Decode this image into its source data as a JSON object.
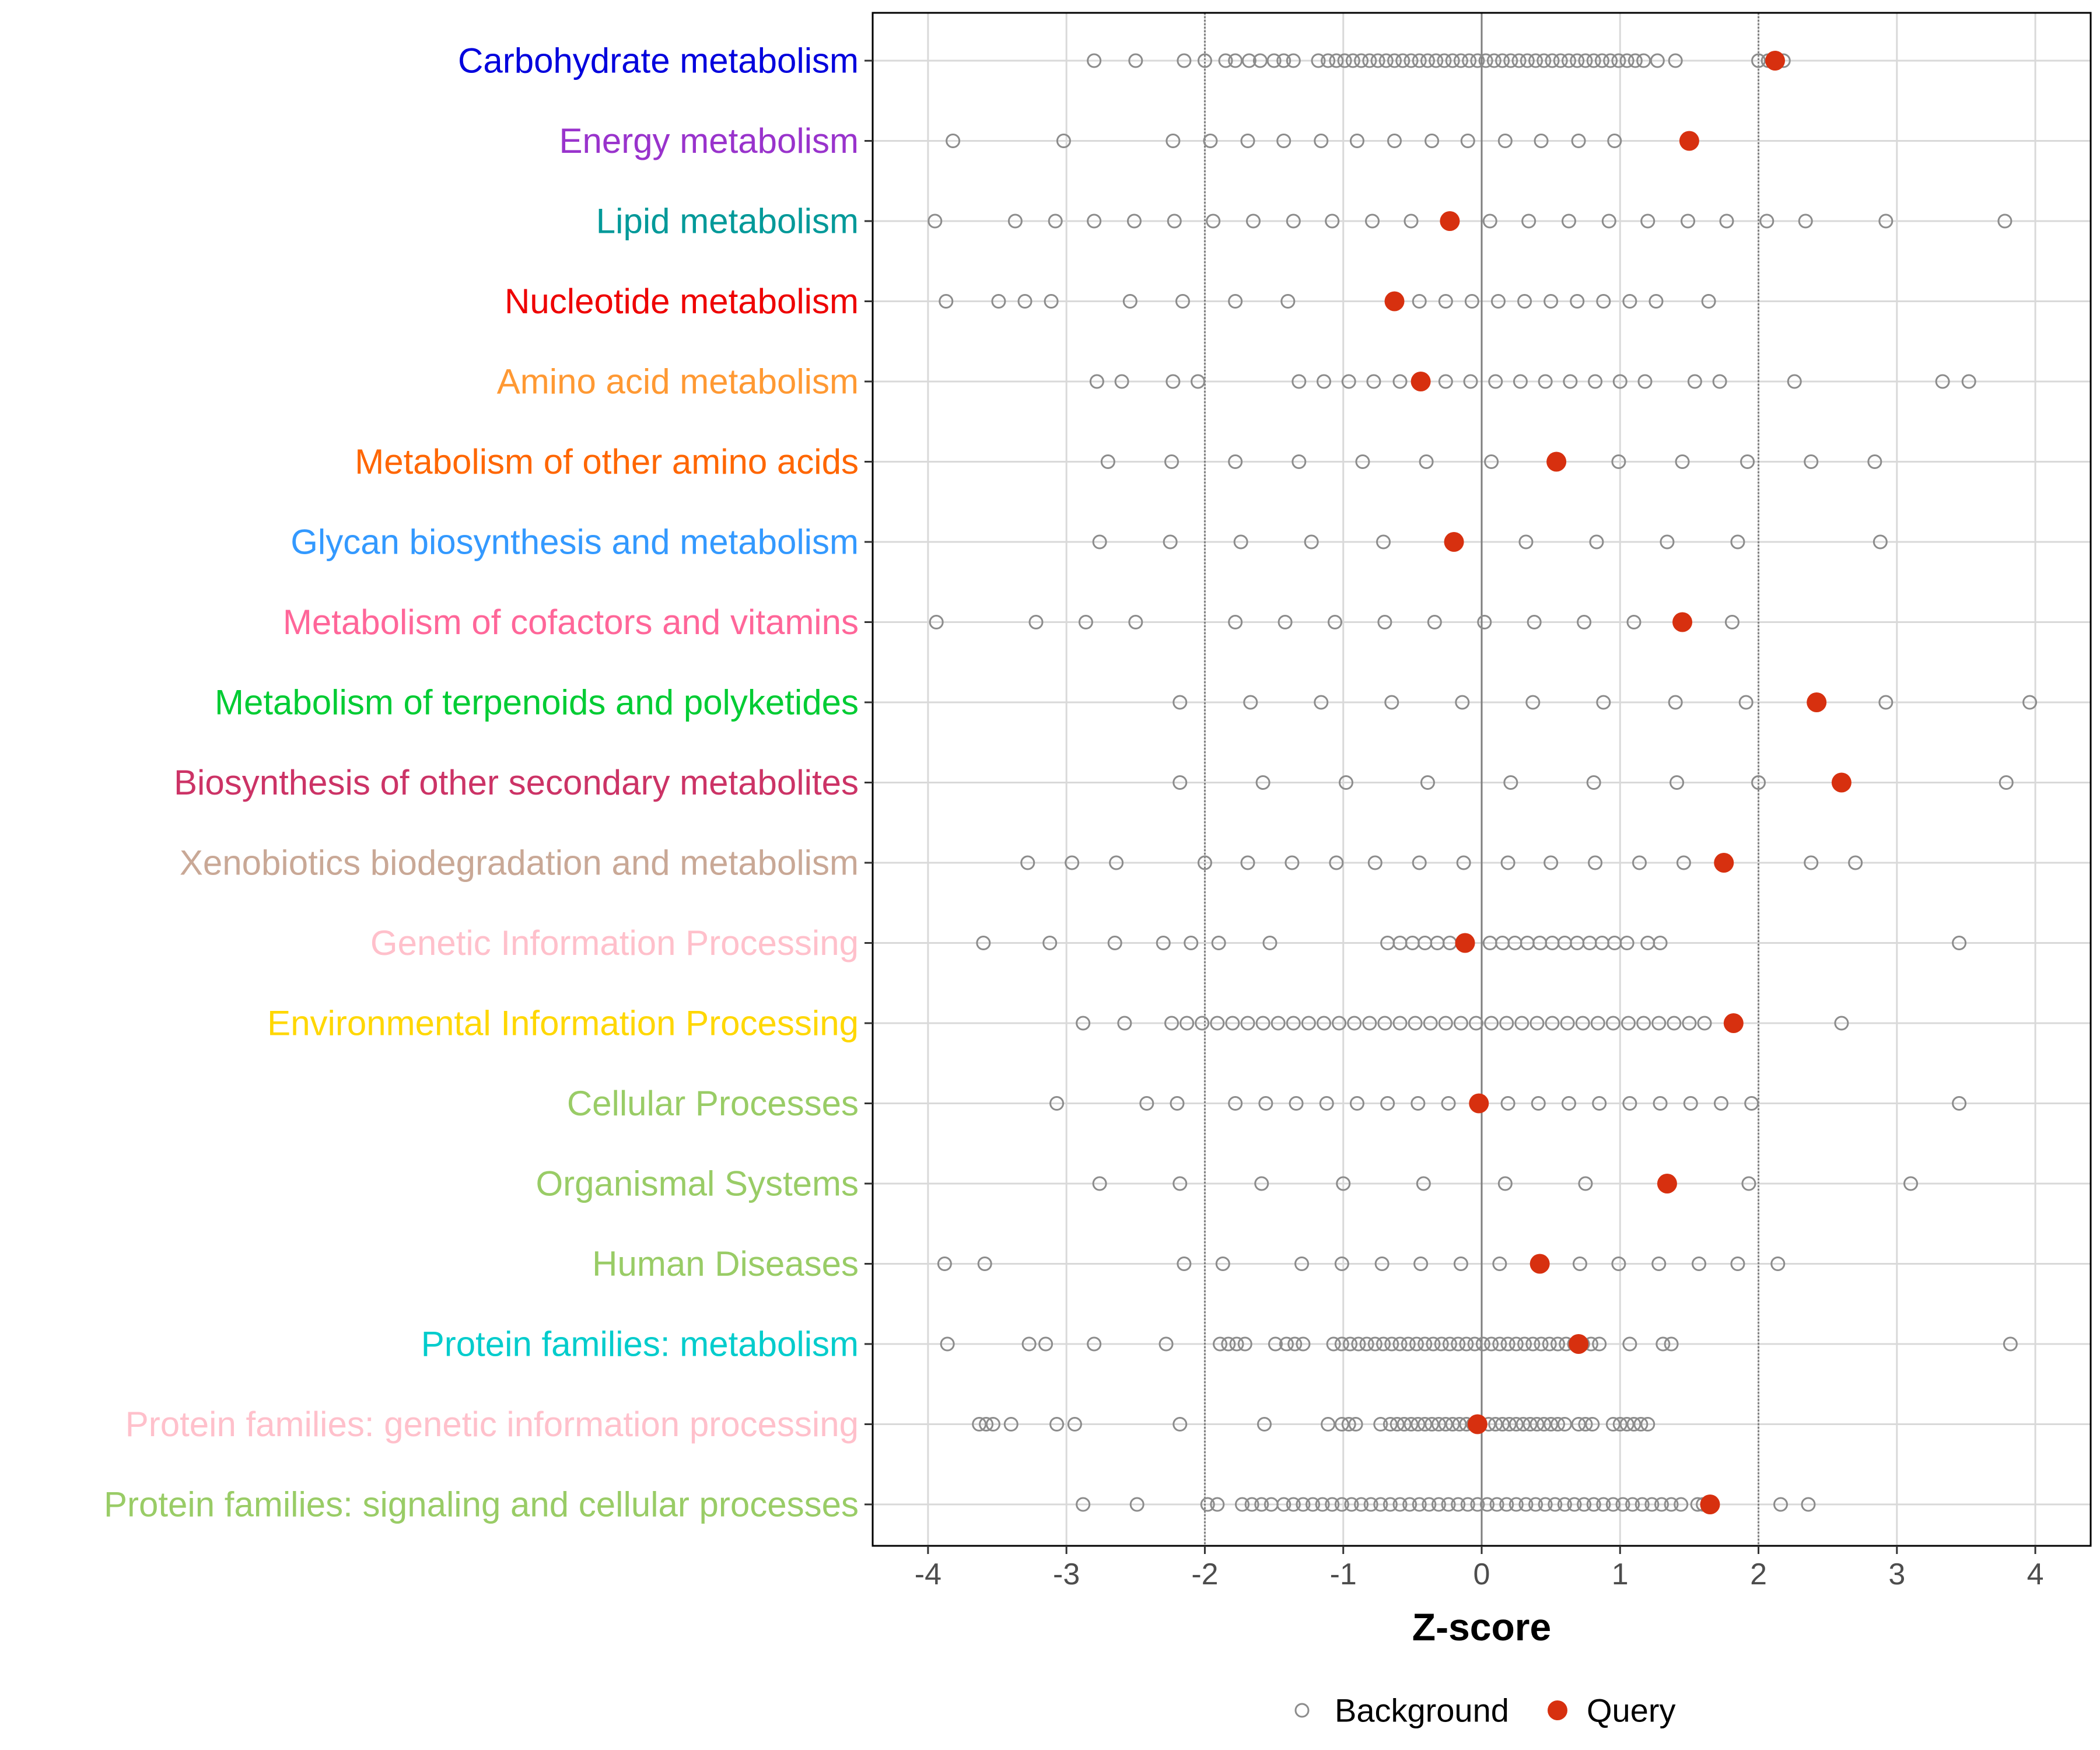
{
  "chart_data": {
    "type": "scatter",
    "xlabel": "Z-score",
    "xlim": [
      -4.4,
      4.4
    ],
    "xticks": [
      -4,
      -3,
      -2,
      -1,
      0,
      1,
      2,
      3,
      4
    ],
    "xtick_labels": [
      "-4",
      "-3",
      "-2",
      "-1",
      "0",
      "1",
      "2",
      "3",
      "4"
    ],
    "reference_lines": [
      {
        "x": -2,
        "style": "dotted"
      },
      {
        "x": 0,
        "style": "solid"
      },
      {
        "x": 2,
        "style": "dotted"
      }
    ],
    "grid": true,
    "legend": {
      "placement": "bottom",
      "items": [
        {
          "label": "Background",
          "marker": "open-circle",
          "color": "#8c8c8c"
        },
        {
          "label": "Query",
          "marker": "filled-circle",
          "color": "#d7300f"
        }
      ]
    },
    "categories": [
      {
        "label": "Carbohydrate metabolism",
        "color": "#0000dd",
        "query": 2.12,
        "background": [
          -2.8,
          -2.5,
          -2.15,
          -2.0,
          -1.85,
          -1.78,
          -1.68,
          -1.6,
          -1.5,
          -1.43,
          -1.36,
          -1.18,
          -1.11,
          -1.05,
          -0.99,
          -0.93,
          -0.87,
          -0.81,
          -0.75,
          -0.69,
          -0.63,
          -0.57,
          -0.51,
          -0.45,
          -0.39,
          -0.33,
          -0.27,
          -0.21,
          -0.15,
          -0.09,
          -0.03,
          0.03,
          0.09,
          0.15,
          0.21,
          0.27,
          0.33,
          0.39,
          0.45,
          0.51,
          0.57,
          0.63,
          0.69,
          0.75,
          0.81,
          0.87,
          0.93,
          0.99,
          1.05,
          1.11,
          1.17,
          1.27,
          1.4,
          2.0,
          2.07,
          2.18
        ]
      },
      {
        "label": "Energy metabolism",
        "color": "#9933cc",
        "query": 1.5,
        "background": [
          -3.82,
          -3.02,
          -2.23,
          -1.96,
          -1.69,
          -1.43,
          -1.16,
          -0.9,
          -0.63,
          -0.36,
          -0.1,
          0.17,
          0.43,
          0.7,
          0.96
        ]
      },
      {
        "label": "Lipid metabolism",
        "color": "#009999",
        "query": -0.23,
        "background": [
          -3.95,
          -3.37,
          -3.08,
          -2.8,
          -2.51,
          -2.22,
          -1.94,
          -1.65,
          -1.36,
          -1.08,
          -0.79,
          -0.51,
          0.06,
          0.34,
          0.63,
          0.92,
          1.2,
          1.49,
          1.77,
          2.06,
          2.34,
          2.92,
          3.78
        ]
      },
      {
        "label": "Nucleotide metabolism",
        "color": "#ee0000",
        "query": -0.63,
        "background": [
          -3.87,
          -3.49,
          -3.3,
          -3.11,
          -2.54,
          -2.16,
          -1.78,
          -1.4,
          -0.45,
          -0.26,
          -0.07,
          0.12,
          0.31,
          0.5,
          0.69,
          0.88,
          1.07,
          1.26,
          1.64
        ]
      },
      {
        "label": "Amino acid metabolism",
        "color": "#ff9933",
        "query": -0.44,
        "background": [
          -2.78,
          -2.6,
          -2.23,
          -2.05,
          -1.32,
          -1.14,
          -0.96,
          -0.78,
          -0.59,
          -0.26,
          -0.08,
          0.1,
          0.28,
          0.46,
          0.64,
          0.82,
          1.0,
          1.18,
          1.54,
          1.72,
          2.26,
          3.33,
          3.52
        ]
      },
      {
        "label": "Metabolism of other amino acids",
        "color": "#ff6600",
        "query": 0.54,
        "background": [
          -2.7,
          -2.24,
          -1.78,
          -1.32,
          -0.86,
          -0.4,
          0.07,
          0.99,
          1.45,
          1.92,
          2.38,
          2.84
        ]
      },
      {
        "label": "Glycan biosynthesis and metabolism",
        "color": "#3399ff",
        "query": -0.2,
        "background": [
          -2.76,
          -2.25,
          -1.74,
          -1.23,
          -0.71,
          0.32,
          0.83,
          1.34,
          1.85,
          2.88
        ]
      },
      {
        "label": "Metabolism of cofactors and vitamins",
        "color": "#ff6699",
        "query": 1.45,
        "background": [
          -3.94,
          -3.22,
          -2.86,
          -2.5,
          -1.78,
          -1.42,
          -1.06,
          -0.7,
          -0.34,
          0.02,
          0.38,
          0.74,
          1.1,
          1.81
        ]
      },
      {
        "label": "Metabolism of terpenoids and polyketides",
        "color": "#00cc33",
        "query": 2.42,
        "background": [
          -2.18,
          -1.67,
          -1.16,
          -0.65,
          -0.14,
          0.37,
          0.88,
          1.4,
          1.91,
          2.92,
          3.96
        ]
      },
      {
        "label": "Biosynthesis of other secondary metabolites",
        "color": "#cc3366",
        "query": 2.6,
        "background": [
          -2.18,
          -1.58,
          -0.98,
          -0.39,
          0.21,
          0.81,
          1.41,
          2.0,
          3.79
        ]
      },
      {
        "label": "Xenobiotics biodegradation and metabolism",
        "color": "#c9a896",
        "query": 1.75,
        "background": [
          -3.28,
          -2.96,
          -2.64,
          -2.0,
          -1.69,
          -1.37,
          -1.05,
          -0.77,
          -0.45,
          -0.13,
          0.19,
          0.5,
          0.82,
          1.14,
          1.46,
          2.38,
          2.7
        ]
      },
      {
        "label": "Genetic Information Processing",
        "color": "#ffc0cb",
        "query": -0.12,
        "background": [
          -3.6,
          -3.12,
          -2.65,
          -2.3,
          -2.1,
          -1.9,
          -1.53,
          -0.68,
          -0.59,
          -0.5,
          -0.41,
          -0.32,
          -0.23,
          0.06,
          0.15,
          0.24,
          0.33,
          0.42,
          0.51,
          0.6,
          0.69,
          0.78,
          0.87,
          0.96,
          1.05,
          1.2,
          1.29,
          3.45
        ]
      },
      {
        "label": "Environmental Information Processing",
        "color": "#ffd700",
        "query": 1.82,
        "background": [
          -2.88,
          -2.58,
          -2.24,
          -2.13,
          -2.02,
          -1.91,
          -1.8,
          -1.69,
          -1.58,
          -1.47,
          -1.36,
          -1.25,
          -1.14,
          -1.03,
          -0.92,
          -0.81,
          -0.7,
          -0.59,
          -0.48,
          -0.37,
          -0.26,
          -0.15,
          -0.04,
          0.07,
          0.18,
          0.29,
          0.4,
          0.51,
          0.62,
          0.73,
          0.84,
          0.95,
          1.06,
          1.17,
          1.28,
          1.39,
          1.5,
          1.61,
          2.6
        ]
      },
      {
        "label": "Cellular Processes",
        "color": "#99cc66",
        "query": -0.02,
        "background": [
          -3.07,
          -2.42,
          -2.2,
          -1.78,
          -1.56,
          -1.34,
          -1.12,
          -0.9,
          -0.68,
          -0.46,
          -0.24,
          0.19,
          0.41,
          0.63,
          0.85,
          1.07,
          1.29,
          1.51,
          1.73,
          1.95,
          3.45
        ]
      },
      {
        "label": "Organismal Systems",
        "color": "#99cc66",
        "query": 1.34,
        "background": [
          -2.76,
          -2.18,
          -1.59,
          -1.0,
          -0.42,
          0.17,
          0.75,
          1.93,
          3.1
        ]
      },
      {
        "label": "Human Diseases",
        "color": "#99cc66",
        "query": 0.42,
        "background": [
          -3.88,
          -3.59,
          -2.15,
          -1.87,
          -1.3,
          -1.01,
          -0.72,
          -0.44,
          -0.15,
          0.13,
          0.71,
          0.99,
          1.28,
          1.57,
          1.85,
          2.14
        ]
      },
      {
        "label": "Protein families: metabolism",
        "color": "#00cccc",
        "query": 0.7,
        "background": [
          -3.86,
          -3.27,
          -3.15,
          -2.8,
          -2.28,
          -1.89,
          -1.83,
          -1.77,
          -1.71,
          -1.49,
          -1.41,
          -1.35,
          -1.29,
          -1.07,
          -1.01,
          -0.95,
          -0.89,
          -0.83,
          -0.77,
          -0.71,
          -0.65,
          -0.59,
          -0.53,
          -0.47,
          -0.41,
          -0.35,
          -0.29,
          -0.23,
          -0.17,
          -0.11,
          -0.05,
          0.01,
          0.07,
          0.13,
          0.19,
          0.25,
          0.31,
          0.37,
          0.43,
          0.49,
          0.55,
          0.61,
          0.67,
          0.73,
          0.79,
          0.85,
          1.07,
          1.31,
          1.37,
          3.82
        ]
      },
      {
        "label": "Protein families: genetic information processing",
        "color": "#ffc0cb",
        "query": -0.03,
        "background": [
          -3.63,
          -3.58,
          -3.53,
          -3.4,
          -3.07,
          -2.94,
          -2.18,
          -1.57,
          -1.11,
          -1.01,
          -0.96,
          -0.91,
          -0.73,
          -0.66,
          -0.61,
          -0.56,
          -0.51,
          -0.46,
          -0.41,
          -0.36,
          -0.31,
          -0.26,
          -0.21,
          -0.16,
          -0.11,
          -0.06,
          0.05,
          0.1,
          0.15,
          0.2,
          0.25,
          0.3,
          0.35,
          0.4,
          0.45,
          0.5,
          0.55,
          0.6,
          0.7,
          0.75,
          0.8,
          0.95,
          1.0,
          1.05,
          1.1,
          1.15,
          1.2
        ]
      },
      {
        "label": "Protein families: signaling and cellular processes",
        "color": "#99cc66",
        "query": 1.65,
        "background": [
          -2.88,
          -2.49,
          -1.98,
          -1.91,
          -1.73,
          -1.66,
          -1.59,
          -1.52,
          -1.43,
          -1.36,
          -1.29,
          -1.22,
          -1.15,
          -1.08,
          -1.01,
          -0.94,
          -0.87,
          -0.8,
          -0.73,
          -0.66,
          -0.59,
          -0.52,
          -0.45,
          -0.38,
          -0.31,
          -0.24,
          -0.17,
          -0.1,
          -0.03,
          0.04,
          0.11,
          0.18,
          0.25,
          0.32,
          0.39,
          0.46,
          0.53,
          0.6,
          0.67,
          0.74,
          0.81,
          0.88,
          0.95,
          1.02,
          1.09,
          1.16,
          1.23,
          1.3,
          1.37,
          1.44,
          1.56,
          1.6,
          2.16,
          2.36
        ]
      }
    ]
  }
}
